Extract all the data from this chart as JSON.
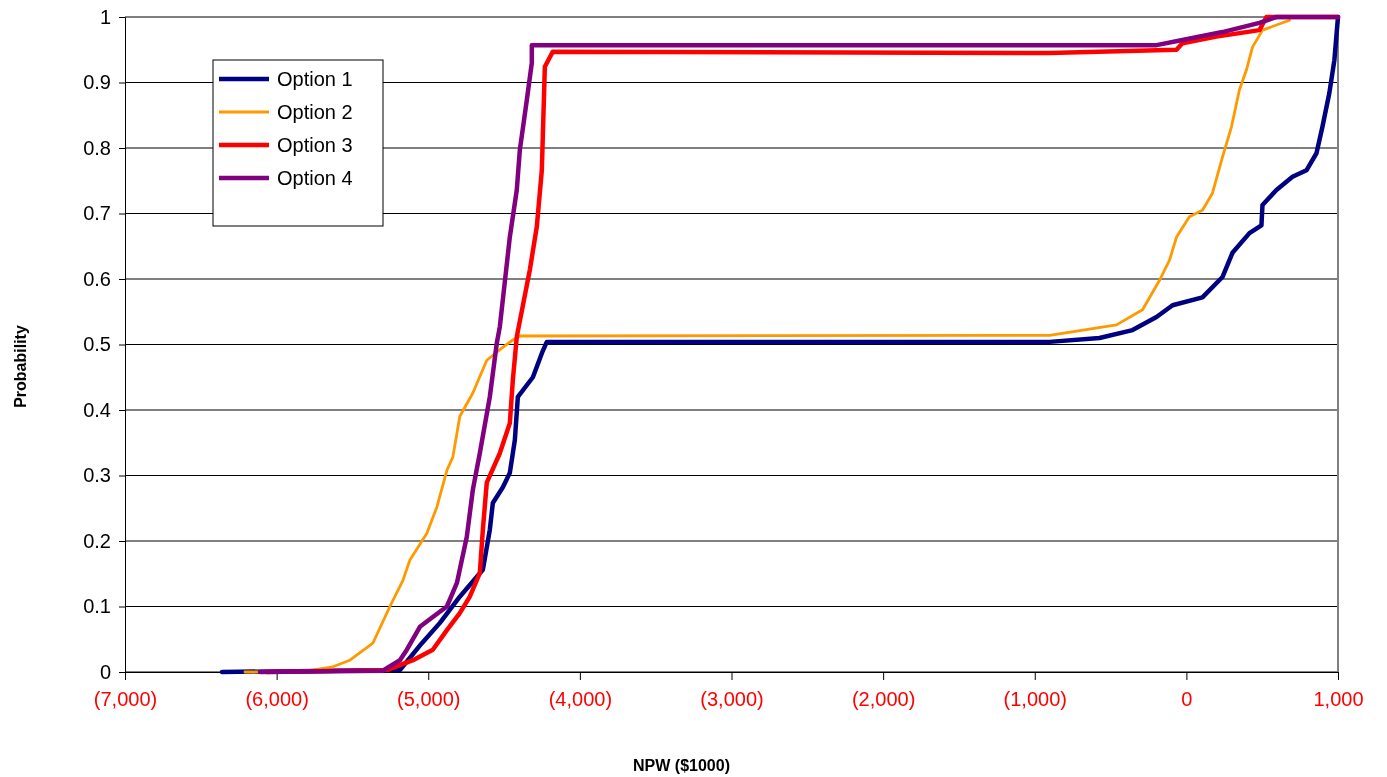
{
  "chart_data": {
    "type": "line",
    "xlabel": "NPW ($1000)",
    "ylabel": "Probability",
    "xlim": [
      -7000,
      1000
    ],
    "ylim": [
      0,
      1
    ],
    "xticks": [
      {
        "value": -7000,
        "label": "(7,000)"
      },
      {
        "value": -6000,
        "label": "(6,000)"
      },
      {
        "value": -5000,
        "label": "(5,000)"
      },
      {
        "value": -4000,
        "label": "(4,000)"
      },
      {
        "value": -3000,
        "label": "(3,000)"
      },
      {
        "value": -2000,
        "label": "(2,000)"
      },
      {
        "value": -1000,
        "label": "(1,000)"
      },
      0,
      {
        "value": 1000,
        "label": "1,000"
      }
    ],
    "yticks": [
      0,
      0.1,
      0.2,
      0.3,
      0.4,
      0.5,
      0.6,
      0.7,
      0.8,
      0.9,
      1
    ],
    "grid": "y",
    "legend": "top left",
    "marker": "none",
    "line_style": "solid",
    "series": [
      {
        "name": "Option 1",
        "color": "#000080",
        "x": [
          -6360,
          -5187,
          -5042,
          -4923,
          -4792,
          -4640,
          -4594,
          -4574,
          -4508,
          -4462,
          -4429,
          -4409,
          -4310,
          -4245,
          -4218,
          -1500,
          -902,
          -573,
          -355,
          -197,
          -91,
          106,
          238,
          304,
          416,
          495,
          502,
          594,
          700,
          792,
          858,
          897,
          943,
          976,
          1000
        ],
        "values": [
          0,
          0.003,
          0.044,
          0.075,
          0.115,
          0.156,
          0.217,
          0.258,
          0.282,
          0.304,
          0.354,
          0.42,
          0.45,
          0.49,
          0.504,
          0.504,
          0.504,
          0.51,
          0.522,
          0.542,
          0.56,
          0.572,
          0.603,
          0.64,
          0.67,
          0.682,
          0.713,
          0.736,
          0.756,
          0.766,
          0.792,
          0.832,
          0.884,
          0.934,
          1
        ]
      },
      {
        "name": "Option 2",
        "color": "#ff9900",
        "x": [
          -6209,
          -5846,
          -5629,
          -5517,
          -5365,
          -5253,
          -5167,
          -5121,
          -5009,
          -4943,
          -4877,
          -4838,
          -4792,
          -4706,
          -4614,
          -4528,
          -4442,
          -4396,
          -902,
          -461,
          -289,
          -177,
          -111,
          -65,
          20,
          106,
          172,
          238,
          297,
          350,
          396,
          436,
          502,
          680
        ],
        "values": [
          0,
          0,
          0.008,
          0.018,
          0.044,
          0.1,
          0.14,
          0.171,
          0.212,
          0.252,
          0.308,
          0.328,
          0.39,
          0.426,
          0.476,
          0.492,
          0.507,
          0.513,
          0.514,
          0.53,
          0.553,
          0.598,
          0.629,
          0.664,
          0.695,
          0.705,
          0.731,
          0.786,
          0.832,
          0.889,
          0.919,
          0.954,
          0.98,
          0.995
        ]
      },
      {
        "name": "Option 3",
        "color": "#ff0000",
        "x": [
          -6064,
          -5273,
          -5101,
          -4970,
          -4877,
          -4792,
          -4726,
          -4660,
          -4640,
          -4614,
          -4528,
          -4462,
          -4442,
          -4416,
          -4330,
          -4284,
          -4251,
          -4231,
          -4179,
          -902,
          -65,
          -26,
          198,
          482,
          528,
          1000
        ],
        "values": [
          0,
          0.003,
          0.018,
          0.034,
          0.064,
          0.09,
          0.115,
          0.151,
          0.217,
          0.289,
          0.334,
          0.38,
          0.446,
          0.512,
          0.614,
          0.68,
          0.766,
          0.924,
          0.947,
          0.945,
          0.95,
          0.96,
          0.97,
          0.98,
          1,
          1
        ]
      },
      {
        "name": "Option 4",
        "color": "#800080",
        "x": [
          -6110,
          -5300,
          -5187,
          -5141,
          -5055,
          -4970,
          -4877,
          -4811,
          -4746,
          -4706,
          -4660,
          -4594,
          -4548,
          -4528,
          -4462,
          -4416,
          -4396,
          -4350,
          -4317,
          -4317,
          -197,
          -26,
          238,
          482,
          594,
          1000
        ],
        "values": [
          0,
          0.002,
          0.018,
          0.034,
          0.069,
          0.084,
          0.1,
          0.136,
          0.206,
          0.278,
          0.334,
          0.42,
          0.502,
          0.527,
          0.664,
          0.736,
          0.797,
          0.873,
          0.93,
          0.957,
          0.957,
          0.965,
          0.977,
          0.991,
          1,
          1
        ]
      }
    ]
  }
}
